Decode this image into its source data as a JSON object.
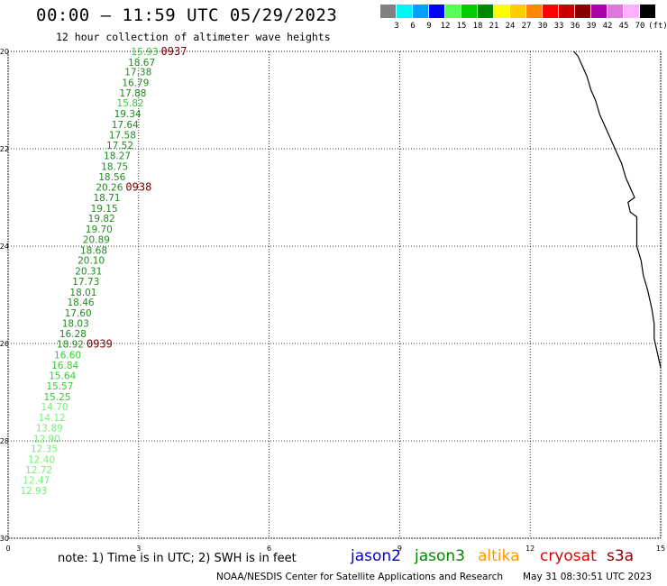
{
  "header": {
    "title": "00:00 – 11:59 UTC 05/29/2023",
    "subtitle": "12 hour collection of altimeter wave heights"
  },
  "legend": {
    "unit": "(ft)",
    "items": [
      {
        "label": "3",
        "color": "#808080"
      },
      {
        "label": "6",
        "color": "#00f5f5"
      },
      {
        "label": "9",
        "color": "#00a0ff"
      },
      {
        "label": "12",
        "color": "#0000ff"
      },
      {
        "label": "15",
        "color": "#55ff55"
      },
      {
        "label": "18",
        "color": "#00cc00"
      },
      {
        "label": "21",
        "color": "#008800"
      },
      {
        "label": "24",
        "color": "#ffff00"
      },
      {
        "label": "27",
        "color": "#ffcc00"
      },
      {
        "label": "30",
        "color": "#ff8800"
      },
      {
        "label": "33",
        "color": "#ff0000"
      },
      {
        "label": "36",
        "color": "#cc0000"
      },
      {
        "label": "39",
        "color": "#880000"
      },
      {
        "label": "42",
        "color": "#aa00aa"
      },
      {
        "label": "45",
        "color": "#dd77dd"
      },
      {
        "label": "70",
        "color": "#ffb0ff"
      },
      {
        "label": "",
        "color": "#000000"
      }
    ]
  },
  "map": {
    "lon_range": [
      0,
      15
    ],
    "lat_range": [
      -30,
      -20
    ],
    "x_ticks": [
      "0",
      "3",
      "6",
      "9",
      "12",
      "15"
    ],
    "y_ticks": [
      "-20",
      "-22",
      "-24",
      "-26",
      "-28",
      "-30"
    ],
    "pass_times": [
      "0937",
      "0938",
      "0939"
    ],
    "observations": [
      {
        "lon": 3.45,
        "lat": -20.0,
        "swh": "15.93",
        "color": "#33cc33"
      },
      {
        "lon": 3.38,
        "lat": -20.22,
        "swh": "18.67",
        "color": "#228822"
      },
      {
        "lon": 3.3,
        "lat": -20.42,
        "swh": "17.38",
        "color": "#228822"
      },
      {
        "lon": 3.24,
        "lat": -20.64,
        "swh": "16.79",
        "color": "#228822"
      },
      {
        "lon": 3.18,
        "lat": -20.85,
        "swh": "17.88",
        "color": "#228822"
      },
      {
        "lon": 3.12,
        "lat": -21.06,
        "swh": "15.82",
        "color": "#33cc33"
      },
      {
        "lon": 3.06,
        "lat": -21.28,
        "swh": "19.34",
        "color": "#228822"
      },
      {
        "lon": 3.0,
        "lat": -21.5,
        "swh": "17.64",
        "color": "#228822"
      },
      {
        "lon": 2.94,
        "lat": -21.71,
        "swh": "17.58",
        "color": "#228822"
      },
      {
        "lon": 2.88,
        "lat": -21.93,
        "swh": "17.52",
        "color": "#228822"
      },
      {
        "lon": 2.82,
        "lat": -22.14,
        "swh": "18.27",
        "color": "#228822"
      },
      {
        "lon": 2.76,
        "lat": -22.36,
        "swh": "18.75",
        "color": "#228822"
      },
      {
        "lon": 2.7,
        "lat": -22.57,
        "swh": "18.56",
        "color": "#228822"
      },
      {
        "lon": 2.64,
        "lat": -22.79,
        "swh": "20.26",
        "color": "#228822"
      },
      {
        "lon": 2.58,
        "lat": -23.0,
        "swh": "18.71",
        "color": "#228822"
      },
      {
        "lon": 2.52,
        "lat": -23.22,
        "swh": "19.15",
        "color": "#228822"
      },
      {
        "lon": 2.46,
        "lat": -23.43,
        "swh": "19.82",
        "color": "#228822"
      },
      {
        "lon": 2.4,
        "lat": -23.65,
        "swh": "19.70",
        "color": "#228822"
      },
      {
        "lon": 2.34,
        "lat": -23.86,
        "swh": "20.89",
        "color": "#228822"
      },
      {
        "lon": 2.28,
        "lat": -24.08,
        "swh": "18.68",
        "color": "#228822"
      },
      {
        "lon": 2.22,
        "lat": -24.29,
        "swh": "20.10",
        "color": "#228822"
      },
      {
        "lon": 2.16,
        "lat": -24.51,
        "swh": "20.31",
        "color": "#228822"
      },
      {
        "lon": 2.1,
        "lat": -24.72,
        "swh": "17.73",
        "color": "#228822"
      },
      {
        "lon": 2.04,
        "lat": -24.94,
        "swh": "18.01",
        "color": "#228822"
      },
      {
        "lon": 1.98,
        "lat": -25.15,
        "swh": "18.46",
        "color": "#228822"
      },
      {
        "lon": 1.92,
        "lat": -25.37,
        "swh": "17.60",
        "color": "#228822"
      },
      {
        "lon": 1.86,
        "lat": -25.58,
        "swh": "18.03",
        "color": "#228822"
      },
      {
        "lon": 1.8,
        "lat": -25.8,
        "swh": "16.28",
        "color": "#228822"
      },
      {
        "lon": 1.74,
        "lat": -26.01,
        "swh": "18.92",
        "color": "#228822"
      },
      {
        "lon": 1.68,
        "lat": -26.23,
        "swh": "16.60",
        "color": "#33cc33"
      },
      {
        "lon": 1.62,
        "lat": -26.44,
        "swh": "16.84",
        "color": "#33cc33"
      },
      {
        "lon": 1.56,
        "lat": -26.66,
        "swh": "15.64",
        "color": "#33cc33"
      },
      {
        "lon": 1.5,
        "lat": -26.87,
        "swh": "15.57",
        "color": "#33cc33"
      },
      {
        "lon": 1.44,
        "lat": -27.09,
        "swh": "15.25",
        "color": "#33cc33"
      },
      {
        "lon": 1.38,
        "lat": -27.3,
        "swh": "14.70",
        "color": "#77ee77"
      },
      {
        "lon": 1.32,
        "lat": -27.52,
        "swh": "14.12",
        "color": "#77ee77"
      },
      {
        "lon": 1.26,
        "lat": -27.73,
        "swh": "13.89",
        "color": "#77ee77"
      },
      {
        "lon": 1.2,
        "lat": -27.95,
        "swh": "12.90",
        "color": "#77ee77"
      },
      {
        "lon": 1.14,
        "lat": -28.16,
        "swh": "12.35",
        "color": "#77ee77"
      },
      {
        "lon": 1.08,
        "lat": -28.38,
        "swh": "12.40",
        "color": "#77ee77"
      },
      {
        "lon": 1.02,
        "lat": -28.59,
        "swh": "12.72",
        "color": "#77ee77"
      },
      {
        "lon": 0.96,
        "lat": -28.81,
        "swh": "12.47",
        "color": "#77ee77"
      },
      {
        "lon": 0.9,
        "lat": -29.02,
        "swh": "12.93",
        "color": "#77ee77"
      }
    ],
    "coastline": [
      [
        13.0,
        -20.0
      ],
      [
        13.1,
        -20.1
      ],
      [
        13.2,
        -20.3
      ],
      [
        13.3,
        -20.5
      ],
      [
        13.4,
        -20.8
      ],
      [
        13.5,
        -21.0
      ],
      [
        13.6,
        -21.3
      ],
      [
        13.7,
        -21.5
      ],
      [
        13.8,
        -21.7
      ],
      [
        13.95,
        -22.0
      ],
      [
        14.1,
        -22.3
      ],
      [
        14.2,
        -22.6
      ],
      [
        14.35,
        -22.9
      ],
      [
        14.4,
        -23.0
      ],
      [
        14.25,
        -23.1
      ],
      [
        14.3,
        -23.3
      ],
      [
        14.45,
        -23.4
      ],
      [
        14.45,
        -23.7
      ],
      [
        14.45,
        -24.0
      ],
      [
        14.55,
        -24.3
      ],
      [
        14.6,
        -24.6
      ],
      [
        14.7,
        -24.9
      ],
      [
        14.75,
        -25.1
      ],
      [
        14.8,
        -25.3
      ],
      [
        14.85,
        -25.6
      ],
      [
        14.85,
        -25.9
      ],
      [
        14.9,
        -26.1
      ],
      [
        14.95,
        -26.3
      ],
      [
        15.0,
        -26.5
      ]
    ]
  },
  "note": "note: 1) Time is in UTC; 2) SWH is in feet",
  "satellites": [
    {
      "name": "jason2",
      "color": "#0000cc"
    },
    {
      "name": "jason3",
      "color": "#008800"
    },
    {
      "name": "altika",
      "color": "#ff9900"
    },
    {
      "name": "cryosat",
      "color": "#dd0000"
    },
    {
      "name": "s3a",
      "color": "#880000"
    }
  ],
  "credit": "NOAA/NESDIS Center for Satellite Applications and Research",
  "timestamp": "May 31 08:30:51 UTC 2023"
}
